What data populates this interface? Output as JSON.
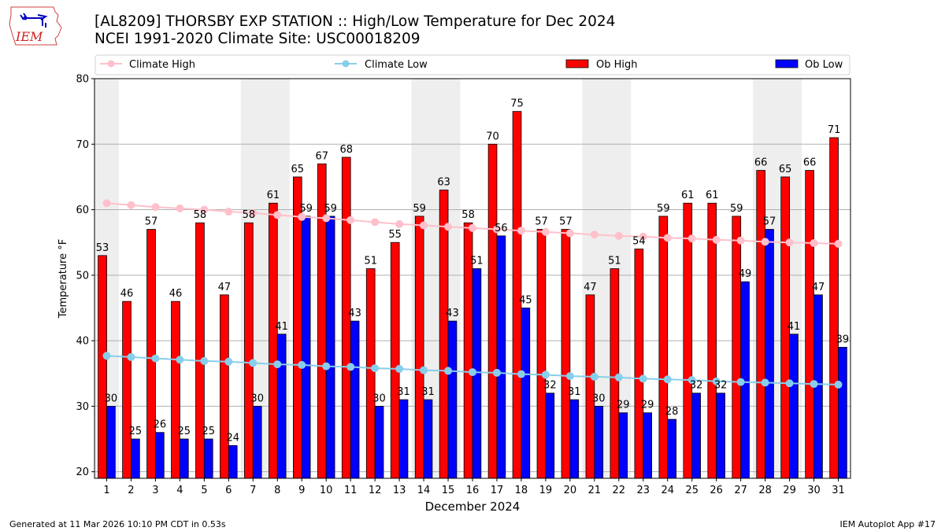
{
  "header": {
    "logo_text": "IEM",
    "title_line1": "[AL8209] THORSBY EXP STATION :: High/Low Temperature for Dec 2024",
    "title_line2": "NCEI 1991-2020 Climate Site: USC00018209"
  },
  "footer": {
    "generated": "Generated at 11 Mar 2026 10:10 PM CDT in 0.53s",
    "app": "IEM Autoplot App #17"
  },
  "colors": {
    "ob_high": "#ff0000",
    "ob_low": "#0000ff",
    "climate_high": "#ffc0cb",
    "climate_low": "#87ceeb",
    "weekend_shade": "#eeeeee",
    "grid": "#b0b0b0"
  },
  "chart_data": {
    "type": "bar",
    "title": "[AL8209] THORSBY EXP STATION :: High/Low Temperature for Dec 2024",
    "subtitle": "NCEI 1991-2020 Climate Site: USC00018209",
    "xlabel": "December 2024",
    "ylabel": "Temperature °F",
    "xlim": [
      0.5,
      31.5
    ],
    "ylim": [
      19,
      80
    ],
    "yticks": [
      20,
      30,
      40,
      50,
      60,
      70,
      80
    ],
    "grid": "horizontal",
    "legend_position": "top",
    "categories": [
      "1",
      "2",
      "3",
      "4",
      "5",
      "6",
      "7",
      "8",
      "9",
      "10",
      "11",
      "12",
      "13",
      "14",
      "15",
      "16",
      "17",
      "18",
      "19",
      "20",
      "21",
      "22",
      "23",
      "24",
      "25",
      "26",
      "27",
      "28",
      "29",
      "30",
      "31"
    ],
    "weekend_days": [
      1,
      7,
      8,
      14,
      15,
      21,
      22,
      28,
      29
    ],
    "series": [
      {
        "name": "Ob High",
        "kind": "bar",
        "color": "#ff0000",
        "values": [
          53,
          46,
          57,
          46,
          58,
          47,
          58,
          61,
          65,
          67,
          68,
          51,
          55,
          59,
          63,
          58,
          70,
          75,
          57,
          57,
          47,
          51,
          54,
          59,
          61,
          61,
          59,
          66,
          65,
          66,
          71
        ]
      },
      {
        "name": "Ob Low",
        "kind": "bar",
        "color": "#0000ff",
        "values": [
          30,
          25,
          26,
          25,
          25,
          24,
          30,
          41,
          59,
          59,
          43,
          30,
          31,
          31,
          43,
          51,
          56,
          45,
          32,
          31,
          30,
          29,
          29,
          28,
          32,
          32,
          49,
          57,
          41,
          47,
          39
        ]
      },
      {
        "name": "Climate High",
        "kind": "line",
        "color": "#ffc0cb",
        "values": [
          61.0,
          60.7,
          60.4,
          60.2,
          60.0,
          59.7,
          59.5,
          59.2,
          58.9,
          58.7,
          58.4,
          58.1,
          57.8,
          57.6,
          57.4,
          57.2,
          57.0,
          56.8,
          56.6,
          56.4,
          56.2,
          56.0,
          55.9,
          55.7,
          55.6,
          55.4,
          55.3,
          55.1,
          55.0,
          54.9,
          54.8
        ]
      },
      {
        "name": "Climate Low",
        "kind": "line",
        "color": "#87ceeb",
        "values": [
          37.7,
          37.5,
          37.3,
          37.1,
          36.9,
          36.8,
          36.6,
          36.4,
          36.3,
          36.1,
          36.0,
          35.8,
          35.7,
          35.5,
          35.4,
          35.2,
          35.1,
          34.9,
          34.8,
          34.6,
          34.5,
          34.4,
          34.2,
          34.1,
          34.0,
          33.8,
          33.7,
          33.6,
          33.5,
          33.4,
          33.3
        ]
      }
    ],
    "legend": [
      "Climate High",
      "Climate Low",
      "Ob High",
      "Ob Low"
    ]
  }
}
